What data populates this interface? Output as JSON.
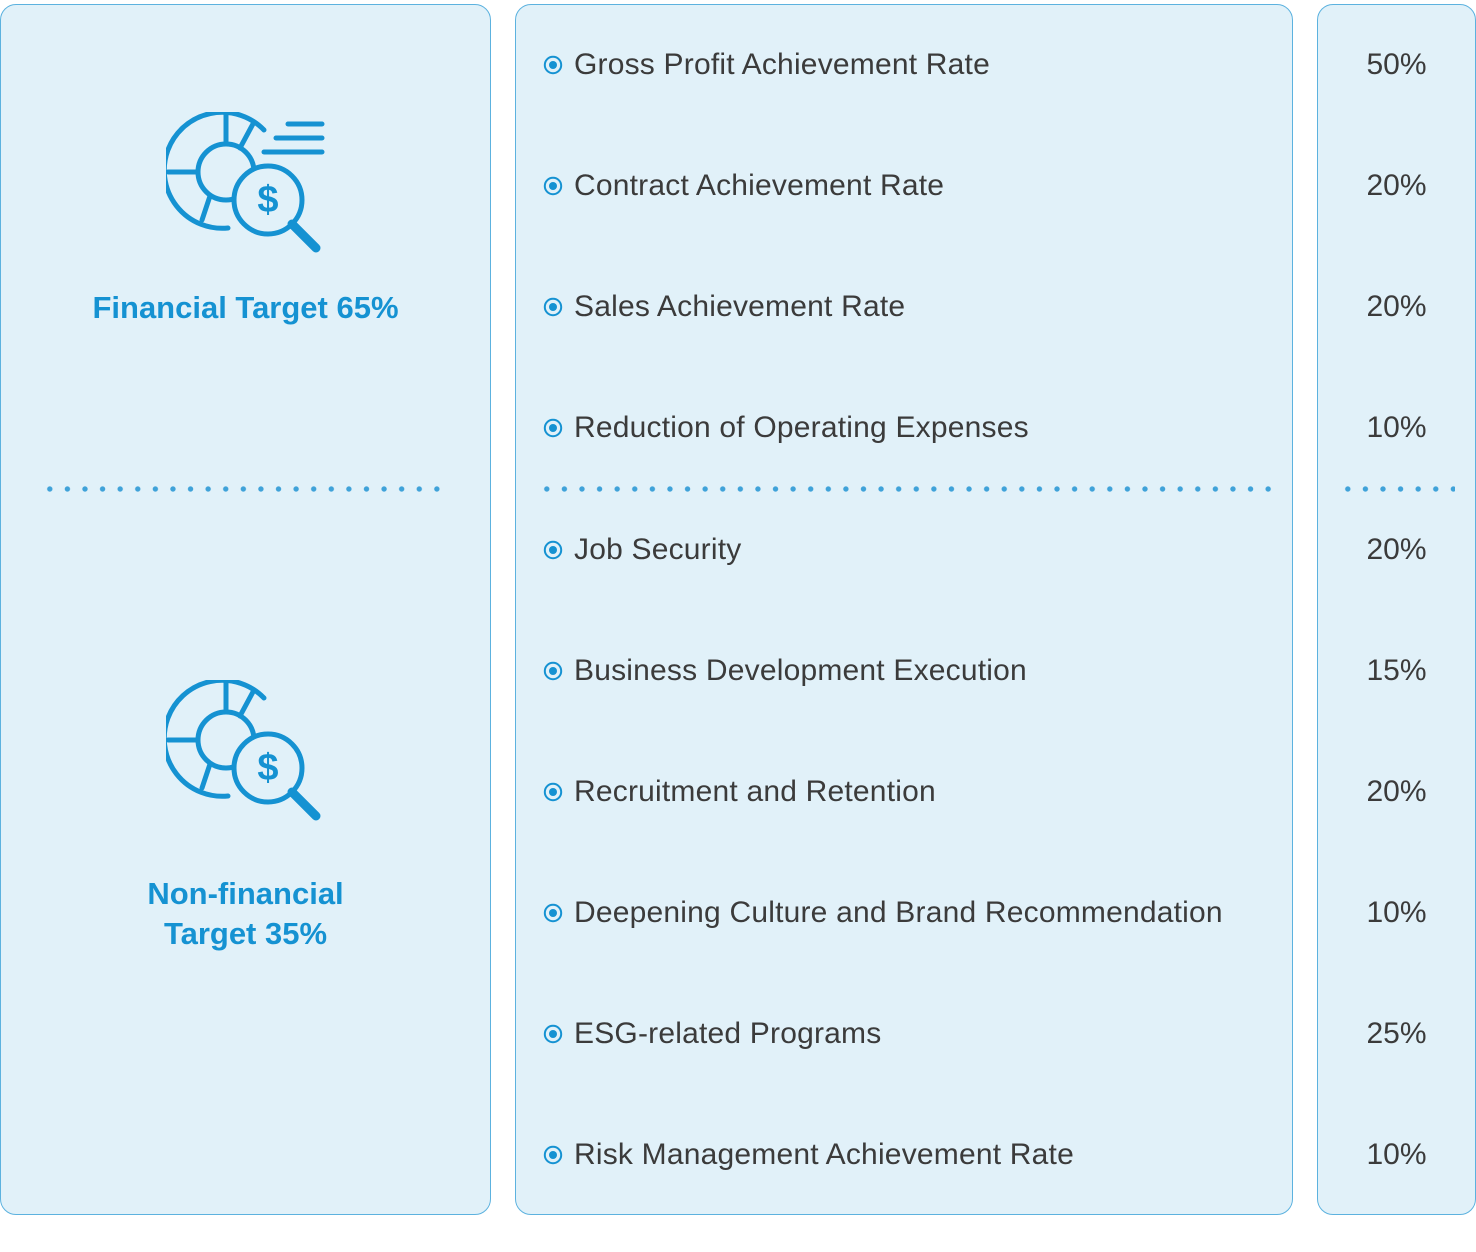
{
  "categories": [
    {
      "label_lines": [
        "Financial Target 65%"
      ],
      "icon": "financial-analysis-icon"
    },
    {
      "label_lines": [
        "Non-financial",
        "Target 35%"
      ],
      "icon": "financial-analysis-icon"
    }
  ],
  "items": [
    {
      "label": "Gross Profit Achievement Rate",
      "weight": "50%"
    },
    {
      "label": "Contract Achievement Rate",
      "weight": "20%"
    },
    {
      "label": "Sales Achievement Rate",
      "weight": "20%"
    },
    {
      "label": "Reduction of Operating Expenses",
      "weight": "10%"
    },
    {
      "label": "Job Security",
      "weight": "20%"
    },
    {
      "label": "Business Development Execution",
      "weight": "15%"
    },
    {
      "label": "Recruitment and Retention",
      "weight": "20%"
    },
    {
      "label": "Deepening Culture and Brand Recommendation",
      "weight": "10%"
    },
    {
      "label": "ESG-related Programs",
      "weight": "25%"
    },
    {
      "label": "Risk Management Achievement Rate",
      "weight": "10%"
    }
  ],
  "colors": {
    "accent": "#1592d2",
    "panel_bg": "#e1f1f9",
    "panel_border": "#5cb2df",
    "text": "#3b3b3b"
  }
}
